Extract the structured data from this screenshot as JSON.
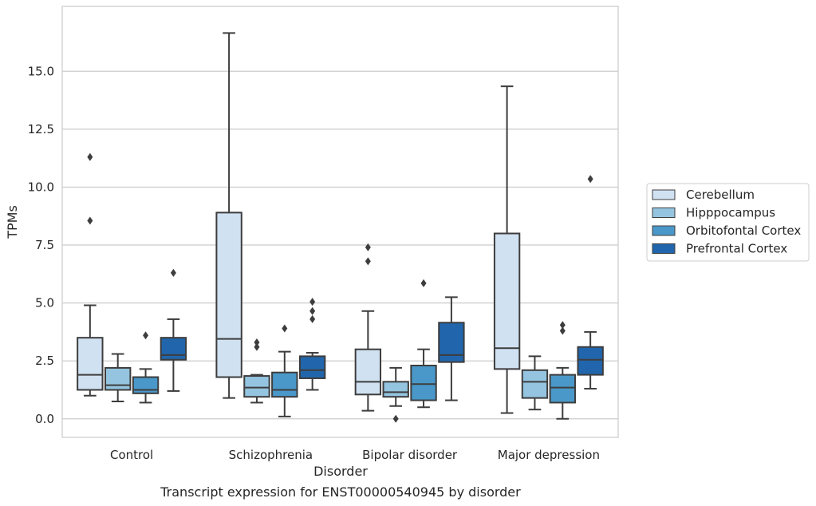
{
  "chart_data": {
    "type": "box",
    "title": "",
    "caption": "Transcript expression for ENST00000540945 by disorder",
    "xlabel": "Disorder",
    "ylabel": "TPMs",
    "ylim": [
      -0.8,
      17.8
    ],
    "yticks": [
      0.0,
      2.5,
      5.0,
      7.5,
      10.0,
      12.5,
      15.0
    ],
    "ytick_labels": [
      "0.0",
      "2.5",
      "5.0",
      "7.5",
      "10.0",
      "12.5",
      "15.0"
    ],
    "grid": "horizontal",
    "legend_position": "right",
    "categories": [
      "Control",
      "Schizophrenia",
      "Bipolar disorder",
      "Major depression"
    ],
    "series": [
      {
        "name": "Cerebellum",
        "color": "#d0e1f2",
        "boxes": [
          {
            "whislo": 1.0,
            "q1": 1.25,
            "med": 1.9,
            "q3": 3.5,
            "whishi": 4.9,
            "fliers": [
              8.55,
              11.3
            ]
          },
          {
            "whislo": 0.9,
            "q1": 1.8,
            "med": 3.45,
            "q3": 8.9,
            "whishi": 16.65,
            "fliers": []
          },
          {
            "whislo": 0.35,
            "q1": 1.05,
            "med": 1.6,
            "q3": 3.0,
            "whishi": 4.65,
            "fliers": [
              6.8,
              7.4
            ]
          },
          {
            "whislo": 0.25,
            "q1": 2.15,
            "med": 3.05,
            "q3": 8.0,
            "whishi": 14.35,
            "fliers": []
          }
        ]
      },
      {
        "name": "Hipppocampus",
        "color": "#94c4df",
        "boxes": [
          {
            "whislo": 0.75,
            "q1": 1.25,
            "med": 1.45,
            "q3": 2.2,
            "whishi": 2.8,
            "fliers": []
          },
          {
            "whislo": 0.7,
            "q1": 0.95,
            "med": 1.35,
            "q3": 1.85,
            "whishi": 1.9,
            "fliers": [
              3.1,
              3.3
            ]
          },
          {
            "whislo": 0.55,
            "q1": 0.95,
            "med": 1.15,
            "q3": 1.6,
            "whishi": 2.2,
            "fliers": [
              0.0
            ]
          },
          {
            "whislo": 0.4,
            "q1": 0.9,
            "med": 1.6,
            "q3": 2.1,
            "whishi": 2.7,
            "fliers": []
          }
        ]
      },
      {
        "name": "Orbitofontal Cortex",
        "color": "#4a98c9",
        "boxes": [
          {
            "whislo": 0.7,
            "q1": 1.1,
            "med": 1.25,
            "q3": 1.8,
            "whishi": 2.15,
            "fliers": [
              3.6
            ]
          },
          {
            "whislo": 0.1,
            "q1": 0.95,
            "med": 1.25,
            "q3": 2.0,
            "whishi": 2.9,
            "fliers": [
              3.9
            ]
          },
          {
            "whislo": 0.5,
            "q1": 0.8,
            "med": 1.5,
            "q3": 2.3,
            "whishi": 3.0,
            "fliers": [
              5.85
            ]
          },
          {
            "whislo": 0.0,
            "q1": 0.7,
            "med": 1.35,
            "q3": 1.9,
            "whishi": 2.2,
            "fliers": [
              3.8,
              4.05
            ]
          }
        ]
      },
      {
        "name": "Prefrontal Cortex",
        "color": "#2166ac",
        "boxes": [
          {
            "whislo": 1.2,
            "q1": 2.55,
            "med": 2.75,
            "q3": 3.5,
            "whishi": 4.3,
            "fliers": [
              6.3
            ]
          },
          {
            "whislo": 1.25,
            "q1": 1.75,
            "med": 2.1,
            "q3": 2.7,
            "whishi": 2.85,
            "fliers": [
              4.3,
              4.65,
              5.05
            ]
          },
          {
            "whislo": 0.8,
            "q1": 2.45,
            "med": 2.75,
            "q3": 4.15,
            "whishi": 5.25,
            "fliers": []
          },
          {
            "whislo": 1.3,
            "q1": 1.9,
            "med": 2.55,
            "q3": 3.1,
            "whishi": 3.75,
            "fliers": [
              10.35
            ]
          }
        ]
      }
    ]
  }
}
